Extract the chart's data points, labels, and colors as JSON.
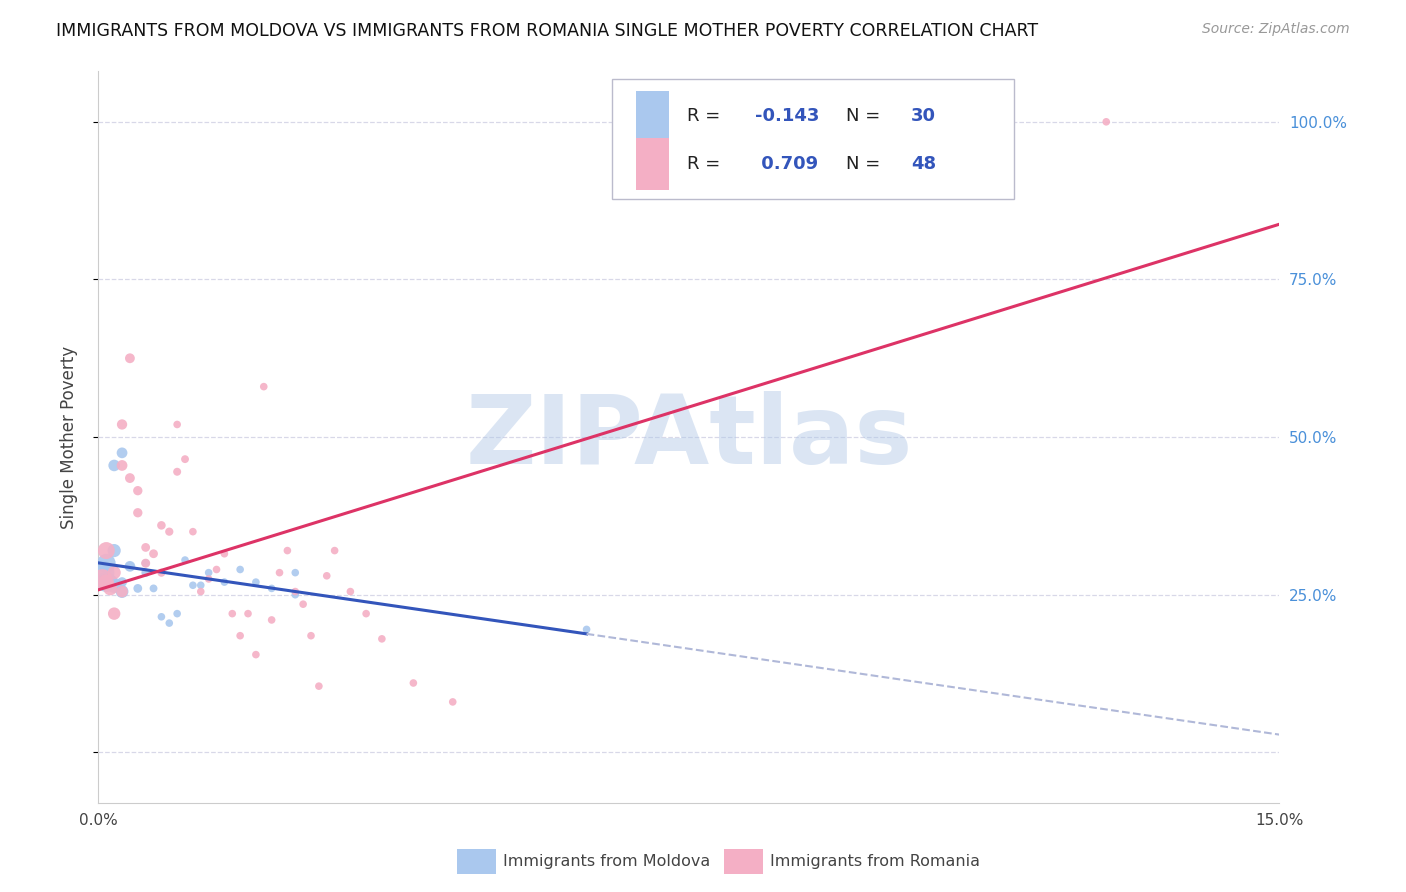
{
  "title": "IMMIGRANTS FROM MOLDOVA VS IMMIGRANTS FROM ROMANIA SINGLE MOTHER POVERTY CORRELATION CHART",
  "source": "Source: ZipAtlas.com",
  "ylabel": "Single Mother Poverty",
  "x_min": 0.0,
  "x_max": 0.15,
  "y_min": -0.08,
  "y_max": 1.08,
  "y_ticks": [
    0.0,
    0.25,
    0.5,
    0.75,
    1.0
  ],
  "y_tick_labels_right": [
    "",
    "25.0%",
    "50.0%",
    "75.0%",
    "100.0%"
  ],
  "x_ticks": [
    0.0,
    0.03,
    0.06,
    0.09,
    0.12,
    0.15
  ],
  "x_tick_labels": [
    "0.0%",
    "",
    "",
    "",
    "",
    "15.0%"
  ],
  "legend_labels": [
    "Immigrants from Moldova",
    "Immigrants from Romania"
  ],
  "moldova_color": "#aac8ee",
  "romania_color": "#f4afc5",
  "moldova_line_color": "#3355bb",
  "romania_line_color": "#dd3366",
  "dashed_line_color": "#b0b8d8",
  "R_moldova": -0.143,
  "N_moldova": 30,
  "R_romania": 0.709,
  "N_romania": 48,
  "background_color": "#ffffff",
  "watermark": "ZIPAtlas",
  "watermark_color": [
    0.69,
    0.78,
    0.9
  ],
  "moldova_x": [
    0.0005,
    0.001,
    0.0015,
    0.002,
    0.002,
    0.003,
    0.003,
    0.004,
    0.005,
    0.006,
    0.006,
    0.007,
    0.008,
    0.009,
    0.01,
    0.011,
    0.012,
    0.013,
    0.014,
    0.016,
    0.018,
    0.02,
    0.022,
    0.025,
    0.025,
    0.001,
    0.002,
    0.003,
    0.004,
    0.062
  ],
  "moldova_y": [
    0.285,
    0.3,
    0.27,
    0.32,
    0.455,
    0.475,
    0.27,
    0.295,
    0.26,
    0.285,
    0.3,
    0.26,
    0.215,
    0.205,
    0.22,
    0.305,
    0.265,
    0.265,
    0.285,
    0.27,
    0.29,
    0.27,
    0.26,
    0.25,
    0.285,
    0.27,
    0.265,
    0.255,
    0.295,
    0.195
  ],
  "moldova_sizes": [
    300,
    180,
    120,
    90,
    70,
    60,
    50,
    45,
    40,
    38,
    35,
    32,
    30,
    30,
    30,
    30,
    30,
    30,
    30,
    30,
    30,
    30,
    30,
    30,
    30,
    200,
    120,
    85,
    60,
    30
  ],
  "romania_x": [
    0.0005,
    0.001,
    0.0015,
    0.002,
    0.003,
    0.003,
    0.004,
    0.005,
    0.006,
    0.007,
    0.008,
    0.009,
    0.01,
    0.011,
    0.012,
    0.013,
    0.014,
    0.015,
    0.016,
    0.017,
    0.018,
    0.019,
    0.02,
    0.021,
    0.022,
    0.023,
    0.024,
    0.025,
    0.026,
    0.027,
    0.028,
    0.029,
    0.03,
    0.032,
    0.034,
    0.036,
    0.04,
    0.045,
    0.001,
    0.002,
    0.003,
    0.004,
    0.005,
    0.006,
    0.008,
    0.01,
    0.105,
    0.128
  ],
  "romania_y": [
    0.275,
    0.32,
    0.26,
    0.22,
    0.455,
    0.52,
    0.435,
    0.415,
    0.3,
    0.315,
    0.36,
    0.35,
    0.445,
    0.465,
    0.35,
    0.255,
    0.275,
    0.29,
    0.315,
    0.22,
    0.185,
    0.22,
    0.155,
    0.58,
    0.21,
    0.285,
    0.32,
    0.255,
    0.235,
    0.185,
    0.105,
    0.28,
    0.32,
    0.255,
    0.22,
    0.18,
    0.11,
    0.08,
    0.27,
    0.285,
    0.255,
    0.625,
    0.38,
    0.325,
    0.285,
    0.52,
    1.0,
    1.0
  ],
  "romania_sizes": [
    200,
    150,
    100,
    80,
    60,
    55,
    50,
    45,
    42,
    40,
    38,
    35,
    33,
    32,
    30,
    30,
    30,
    30,
    30,
    30,
    30,
    30,
    30,
    30,
    30,
    30,
    30,
    30,
    30,
    30,
    30,
    30,
    30,
    30,
    30,
    30,
    30,
    30,
    120,
    90,
    70,
    50,
    45,
    40,
    35,
    30,
    30,
    30
  ]
}
